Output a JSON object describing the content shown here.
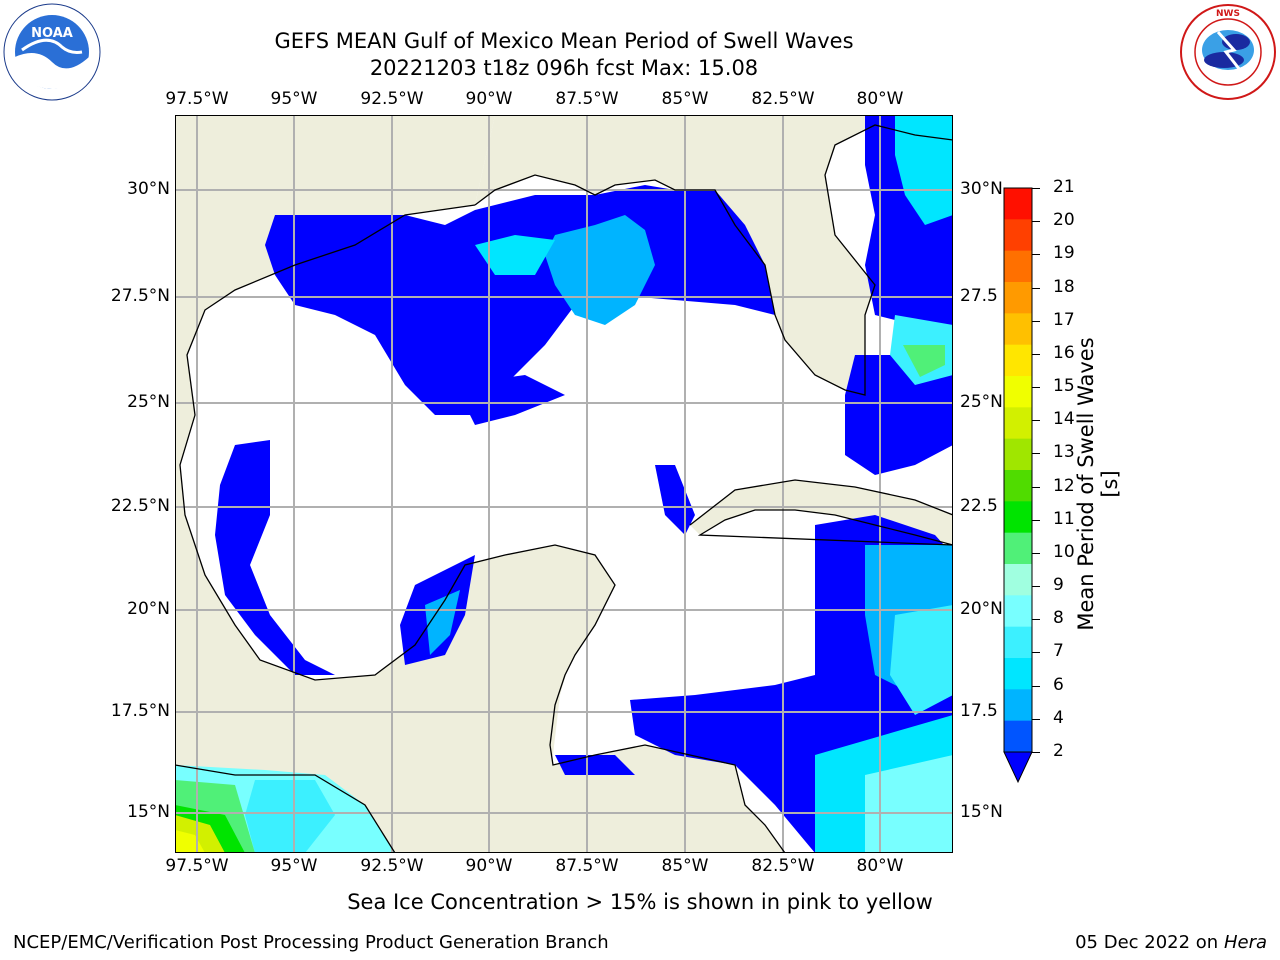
{
  "header": {
    "title_line1": "GEFS MEAN Gulf of Mexico Mean Period of Swell Waves",
    "title_line2": "20221203 t18z 096h fcst   Max: 15.08",
    "noaa_logo_text": "NOAA",
    "noaa_ring_text": "NATIONAL OCEANIC AND ATMOSPHERIC ADMINISTRATION · U.S. DEPARTMENT OF COMMERCE",
    "nws_ring_text": "NATIONAL WEATHER SERVICE"
  },
  "map": {
    "lon_labels": [
      "97.5°W",
      "95°W",
      "92.5°W",
      "90°W",
      "87.5°W",
      "85°W",
      "82.5°W",
      "80°W"
    ],
    "lat_labels_left": [
      "30°N",
      "27.5°N",
      "25°N",
      "22.5°N",
      "20°N",
      "17.5°N",
      "15°N"
    ],
    "lat_labels_right": [
      "30°N",
      "27.5",
      "25°N",
      "22.5",
      "20°N",
      "17.5",
      "15°N"
    ],
    "colors": {
      "land": "#eeeedc",
      "water": "#ffffff",
      "grid": "#b0b0b0"
    }
  },
  "colorbar": {
    "label": "Mean Period of Swell Waves [s]",
    "ticks": [
      "2",
      "4",
      "6",
      "7",
      "8",
      "9",
      "10",
      "11",
      "12",
      "13",
      "14",
      "15",
      "16",
      "17",
      "18",
      "19",
      "20",
      "21"
    ],
    "colors": [
      "#0055ff",
      "#00b4ff",
      "#00e6ff",
      "#3cf0ff",
      "#78ffff",
      "#a0ffe0",
      "#50f078",
      "#00e400",
      "#50dc00",
      "#a0e600",
      "#d2f000",
      "#f0ff00",
      "#ffe600",
      "#ffc000",
      "#ff9a00",
      "#ff7000",
      "#ff4000",
      "#ff1000"
    ],
    "extend_color": "#0000ff"
  },
  "caption": "Sea Ice Concentration > 15% is shown in pink to yellow",
  "footer": {
    "left": "NCEP/EMC/Verification Post Processing Product Generation Branch",
    "right_prefix": "05 Dec 2022 on",
    "right_host": "Hera"
  }
}
